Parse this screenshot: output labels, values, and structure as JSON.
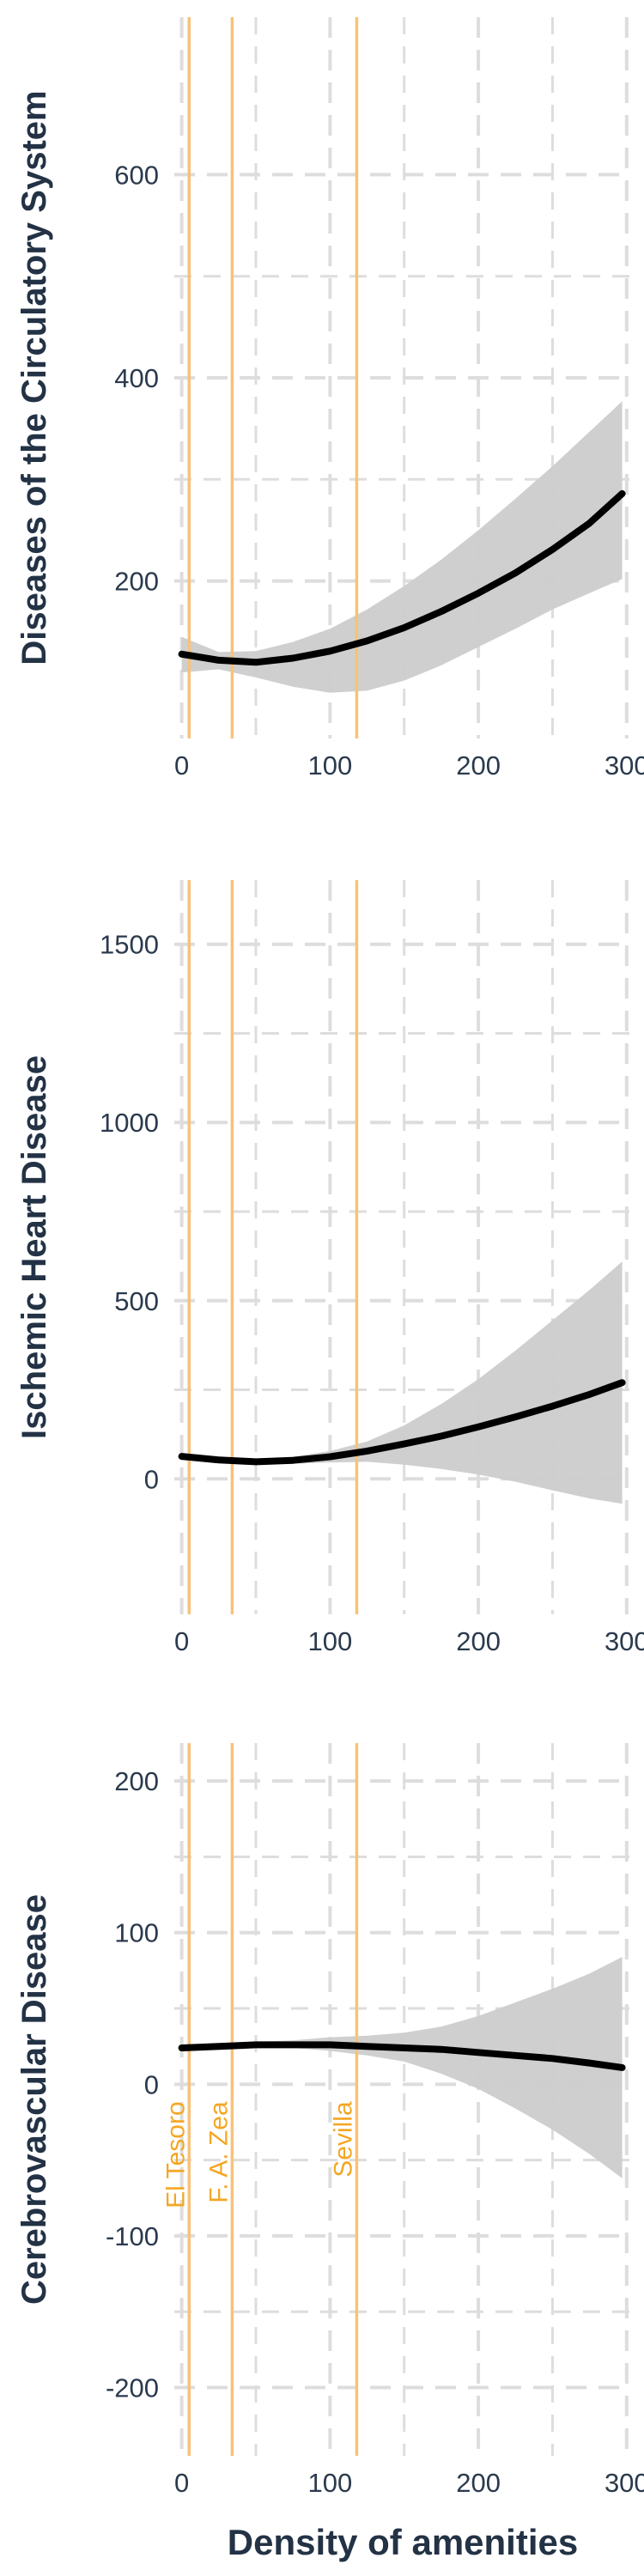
{
  "chart_data": {
    "type": "line",
    "xlabel": "Density of amenities",
    "colors": {
      "fit": "#000000",
      "band": "#cccccc",
      "vline": "#f7c27a",
      "vlabel": "#f5a623",
      "grid": "#dddddd"
    },
    "vlines": [
      {
        "name": "El Tesoro",
        "x": 5
      },
      {
        "name": "F. A. Zea",
        "x": 34
      },
      {
        "name": "Sevilla",
        "x": 118
      }
    ],
    "panels": [
      {
        "ylabel": "Diseases of the Circulatory System",
        "xlim": [
          -5,
          303
        ],
        "ylim": [
          45,
          755
        ],
        "xticks": [
          0,
          100,
          200,
          300
        ],
        "xtick_labels": [
          "0",
          "100",
          "200",
          "300"
        ],
        "yticks": [
          200,
          400,
          600
        ],
        "ytick_labels": [
          "200",
          "400",
          "600"
        ],
        "fit": {
          "x": [
            0,
            25,
            50,
            75,
            100,
            125,
            150,
            175,
            200,
            225,
            250,
            275,
            297
          ],
          "y": [
            128,
            122,
            120,
            124,
            131,
            141,
            154,
            170,
            188,
            208,
            231,
            257,
            286
          ]
        },
        "upper": {
          "x": [
            0,
            25,
            50,
            75,
            100,
            125,
            150,
            175,
            200,
            225,
            250,
            275,
            297
          ],
          "y": [
            145,
            130,
            131,
            140,
            153,
            172,
            195,
            221,
            250,
            281,
            313,
            347,
            377
          ]
        },
        "lower": {
          "x": [
            0,
            25,
            50,
            75,
            100,
            125,
            150,
            175,
            200,
            225,
            250,
            275,
            297
          ],
          "y": [
            110,
            113,
            105,
            96,
            90,
            92,
            102,
            117,
            135,
            153,
            172,
            188,
            202
          ]
        }
      },
      {
        "ylabel": "Ischemic Heart Disease",
        "xlim": [
          -5,
          303
        ],
        "ylim": [
          -380,
          1680
        ],
        "xticks": [
          0,
          100,
          200,
          300
        ],
        "xtick_labels": [
          "0",
          "100",
          "200",
          "300"
        ],
        "yticks": [
          0,
          500,
          1000,
          1500
        ],
        "ytick_labels": [
          "0",
          "500",
          "1000",
          "1500"
        ],
        "fit": {
          "x": [
            0,
            25,
            50,
            75,
            100,
            125,
            150,
            175,
            200,
            225,
            250,
            275,
            297
          ],
          "y": [
            63,
            53,
            48,
            52,
            62,
            78,
            98,
            120,
            146,
            174,
            204,
            237,
            270
          ]
        },
        "upper": {
          "x": [
            0,
            25,
            50,
            75,
            100,
            125,
            150,
            175,
            200,
            225,
            250,
            275,
            297
          ],
          "y": [
            70,
            60,
            56,
            62,
            78,
            105,
            150,
            210,
            280,
            360,
            445,
            530,
            610
          ]
        },
        "lower": {
          "x": [
            0,
            25,
            50,
            75,
            100,
            125,
            150,
            175,
            200,
            225,
            250,
            275,
            297
          ],
          "y": [
            55,
            46,
            40,
            42,
            46,
            48,
            40,
            28,
            12,
            -8,
            -32,
            -55,
            -70
          ]
        }
      },
      {
        "ylabel": "Cerebrovascular Disease",
        "xlim": [
          -5,
          303
        ],
        "ylim": [
          -245,
          225
        ],
        "xticks": [
          0,
          100,
          200,
          300
        ],
        "xtick_labels": [
          "0",
          "100",
          "200",
          "300"
        ],
        "yticks": [
          -200,
          -100,
          0,
          100,
          200
        ],
        "ytick_labels": [
          "-200",
          "-100",
          "0",
          "100",
          "200"
        ],
        "fit": {
          "x": [
            0,
            25,
            50,
            75,
            100,
            125,
            150,
            175,
            200,
            225,
            250,
            275,
            297
          ],
          "y": [
            24,
            25,
            26,
            26,
            26,
            25,
            24,
            23,
            21,
            19,
            17,
            14,
            11
          ]
        },
        "upper": {
          "x": [
            0,
            25,
            50,
            75,
            100,
            125,
            150,
            175,
            200,
            225,
            250,
            275,
            297
          ],
          "y": [
            26,
            27,
            28,
            29,
            31,
            32,
            34,
            38,
            45,
            54,
            63,
            73,
            84
          ]
        },
        "lower": {
          "x": [
            0,
            25,
            50,
            75,
            100,
            125,
            150,
            175,
            200,
            225,
            250,
            275,
            297
          ],
          "y": [
            22,
            23,
            24,
            24,
            22,
            19,
            15,
            7,
            -3,
            -16,
            -30,
            -46,
            -62
          ]
        }
      }
    ]
  }
}
